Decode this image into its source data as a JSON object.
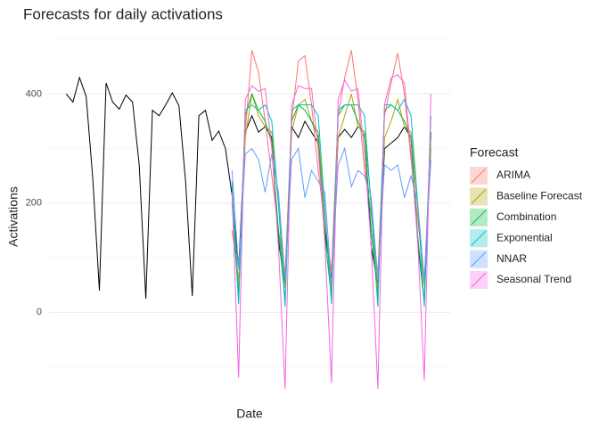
{
  "chart_data": {
    "type": "line",
    "title": "Forecasts for daily activations",
    "xlabel": "Date",
    "ylabel": "Activations",
    "legend_title": "Forecast",
    "legend": "right",
    "x": [
      0,
      1,
      2,
      3,
      4,
      5,
      6,
      7,
      8,
      9,
      10,
      11,
      12,
      13,
      14,
      15,
      16,
      17,
      18,
      19,
      20,
      21,
      22,
      23,
      24,
      25,
      26,
      27,
      28,
      29,
      30,
      31,
      32,
      33,
      34,
      35,
      36,
      37,
      38,
      39,
      40,
      41,
      42,
      43,
      44,
      45,
      46,
      47,
      48,
      49,
      50,
      51,
      52,
      53,
      54,
      55
    ],
    "xlim": [
      -2.6,
      57.9
    ],
    "ylim": [
      -140,
      510
    ],
    "yticks": [
      0,
      200,
      400
    ],
    "minor_yticks": [
      -100,
      100,
      300,
      500
    ],
    "grid": true,
    "actual": {
      "color": "#000000",
      "values": [
        400,
        385,
        430,
        395,
        245,
        40,
        420,
        385,
        372,
        398,
        385,
        270,
        25,
        370,
        360,
        380,
        402,
        378,
        240,
        30,
        360,
        370,
        315,
        332,
        300,
        215,
        80,
        330,
        360,
        330,
        340,
        320,
        130,
        50,
        340,
        320,
        350,
        330,
        310,
        150,
        60,
        320,
        335,
        320,
        340,
        330,
        120,
        50,
        300,
        310,
        320,
        340,
        320,
        130,
        20,
        330
      ]
    },
    "series": [
      {
        "name": "ARIMA",
        "color": "#F8766D",
        "values": [
          null,
          null,
          null,
          null,
          null,
          null,
          null,
          null,
          null,
          null,
          null,
          null,
          null,
          null,
          null,
          null,
          null,
          null,
          null,
          null,
          null,
          null,
          null,
          null,
          null,
          150,
          60,
          330,
          480,
          440,
          350,
          250,
          150,
          70,
          350,
          460,
          470,
          380,
          260,
          160,
          75,
          360,
          430,
          480,
          390,
          260,
          180,
          70,
          360,
          420,
          475,
          400,
          280,
          170,
          55,
          330
        ]
      },
      {
        "name": "Baseline Forecast",
        "color": "#B79F00",
        "values": [
          null,
          null,
          null,
          null,
          null,
          null,
          null,
          null,
          null,
          null,
          null,
          null,
          null,
          null,
          null,
          null,
          null,
          null,
          null,
          null,
          null,
          null,
          null,
          null,
          null,
          230,
          40,
          320,
          400,
          360,
          340,
          330,
          200,
          45,
          330,
          380,
          390,
          350,
          330,
          180,
          40,
          320,
          360,
          400,
          340,
          330,
          200,
          40,
          320,
          350,
          390,
          340,
          330,
          190,
          50,
          300
        ]
      },
      {
        "name": "Combination",
        "color": "#00BA38",
        "values": [
          null,
          null,
          null,
          null,
          null,
          null,
          null,
          null,
          null,
          null,
          null,
          null,
          null,
          null,
          null,
          null,
          null,
          null,
          null,
          null,
          null,
          null,
          null,
          null,
          null,
          200,
          25,
          360,
          400,
          370,
          350,
          310,
          150,
          20,
          350,
          380,
          370,
          350,
          320,
          140,
          25,
          360,
          380,
          380,
          350,
          320,
          150,
          25,
          370,
          380,
          370,
          350,
          320,
          140,
          20,
          330
        ]
      },
      {
        "name": "Exponential",
        "color": "#00BFC4",
        "values": [
          null,
          null,
          null,
          null,
          null,
          null,
          null,
          null,
          null,
          null,
          null,
          null,
          null,
          null,
          null,
          null,
          null,
          null,
          null,
          null,
          null,
          null,
          null,
          null,
          null,
          240,
          15,
          370,
          380,
          370,
          380,
          350,
          200,
          10,
          370,
          380,
          380,
          380,
          360,
          190,
          15,
          370,
          380,
          380,
          380,
          360,
          190,
          10,
          380,
          380,
          370,
          390,
          360,
          200,
          10,
          360
        ]
      },
      {
        "name": "NNAR",
        "color": "#619CFF",
        "values": [
          null,
          null,
          null,
          null,
          null,
          null,
          null,
          null,
          null,
          null,
          null,
          null,
          null,
          null,
          null,
          null,
          null,
          null,
          null,
          null,
          null,
          null,
          null,
          null,
          null,
          260,
          80,
          290,
          300,
          280,
          220,
          290,
          220,
          60,
          280,
          300,
          210,
          260,
          240,
          220,
          50,
          270,
          300,
          230,
          260,
          250,
          210,
          60,
          270,
          260,
          270,
          210,
          250,
          200,
          60,
          280
        ]
      },
      {
        "name": "Seasonal Trend",
        "color": "#F564E3",
        "values": [
          null,
          null,
          null,
          null,
          null,
          null,
          null,
          null,
          null,
          null,
          null,
          null,
          null,
          null,
          null,
          null,
          null,
          null,
          null,
          null,
          null,
          null,
          null,
          null,
          null,
          220,
          -120,
          390,
          415,
          405,
          410,
          300,
          120,
          -140,
          380,
          415,
          410,
          410,
          300,
          130,
          -130,
          390,
          425,
          405,
          410,
          290,
          120,
          -140,
          380,
          430,
          435,
          420,
          290,
          130,
          -125,
          400
        ]
      }
    ]
  }
}
